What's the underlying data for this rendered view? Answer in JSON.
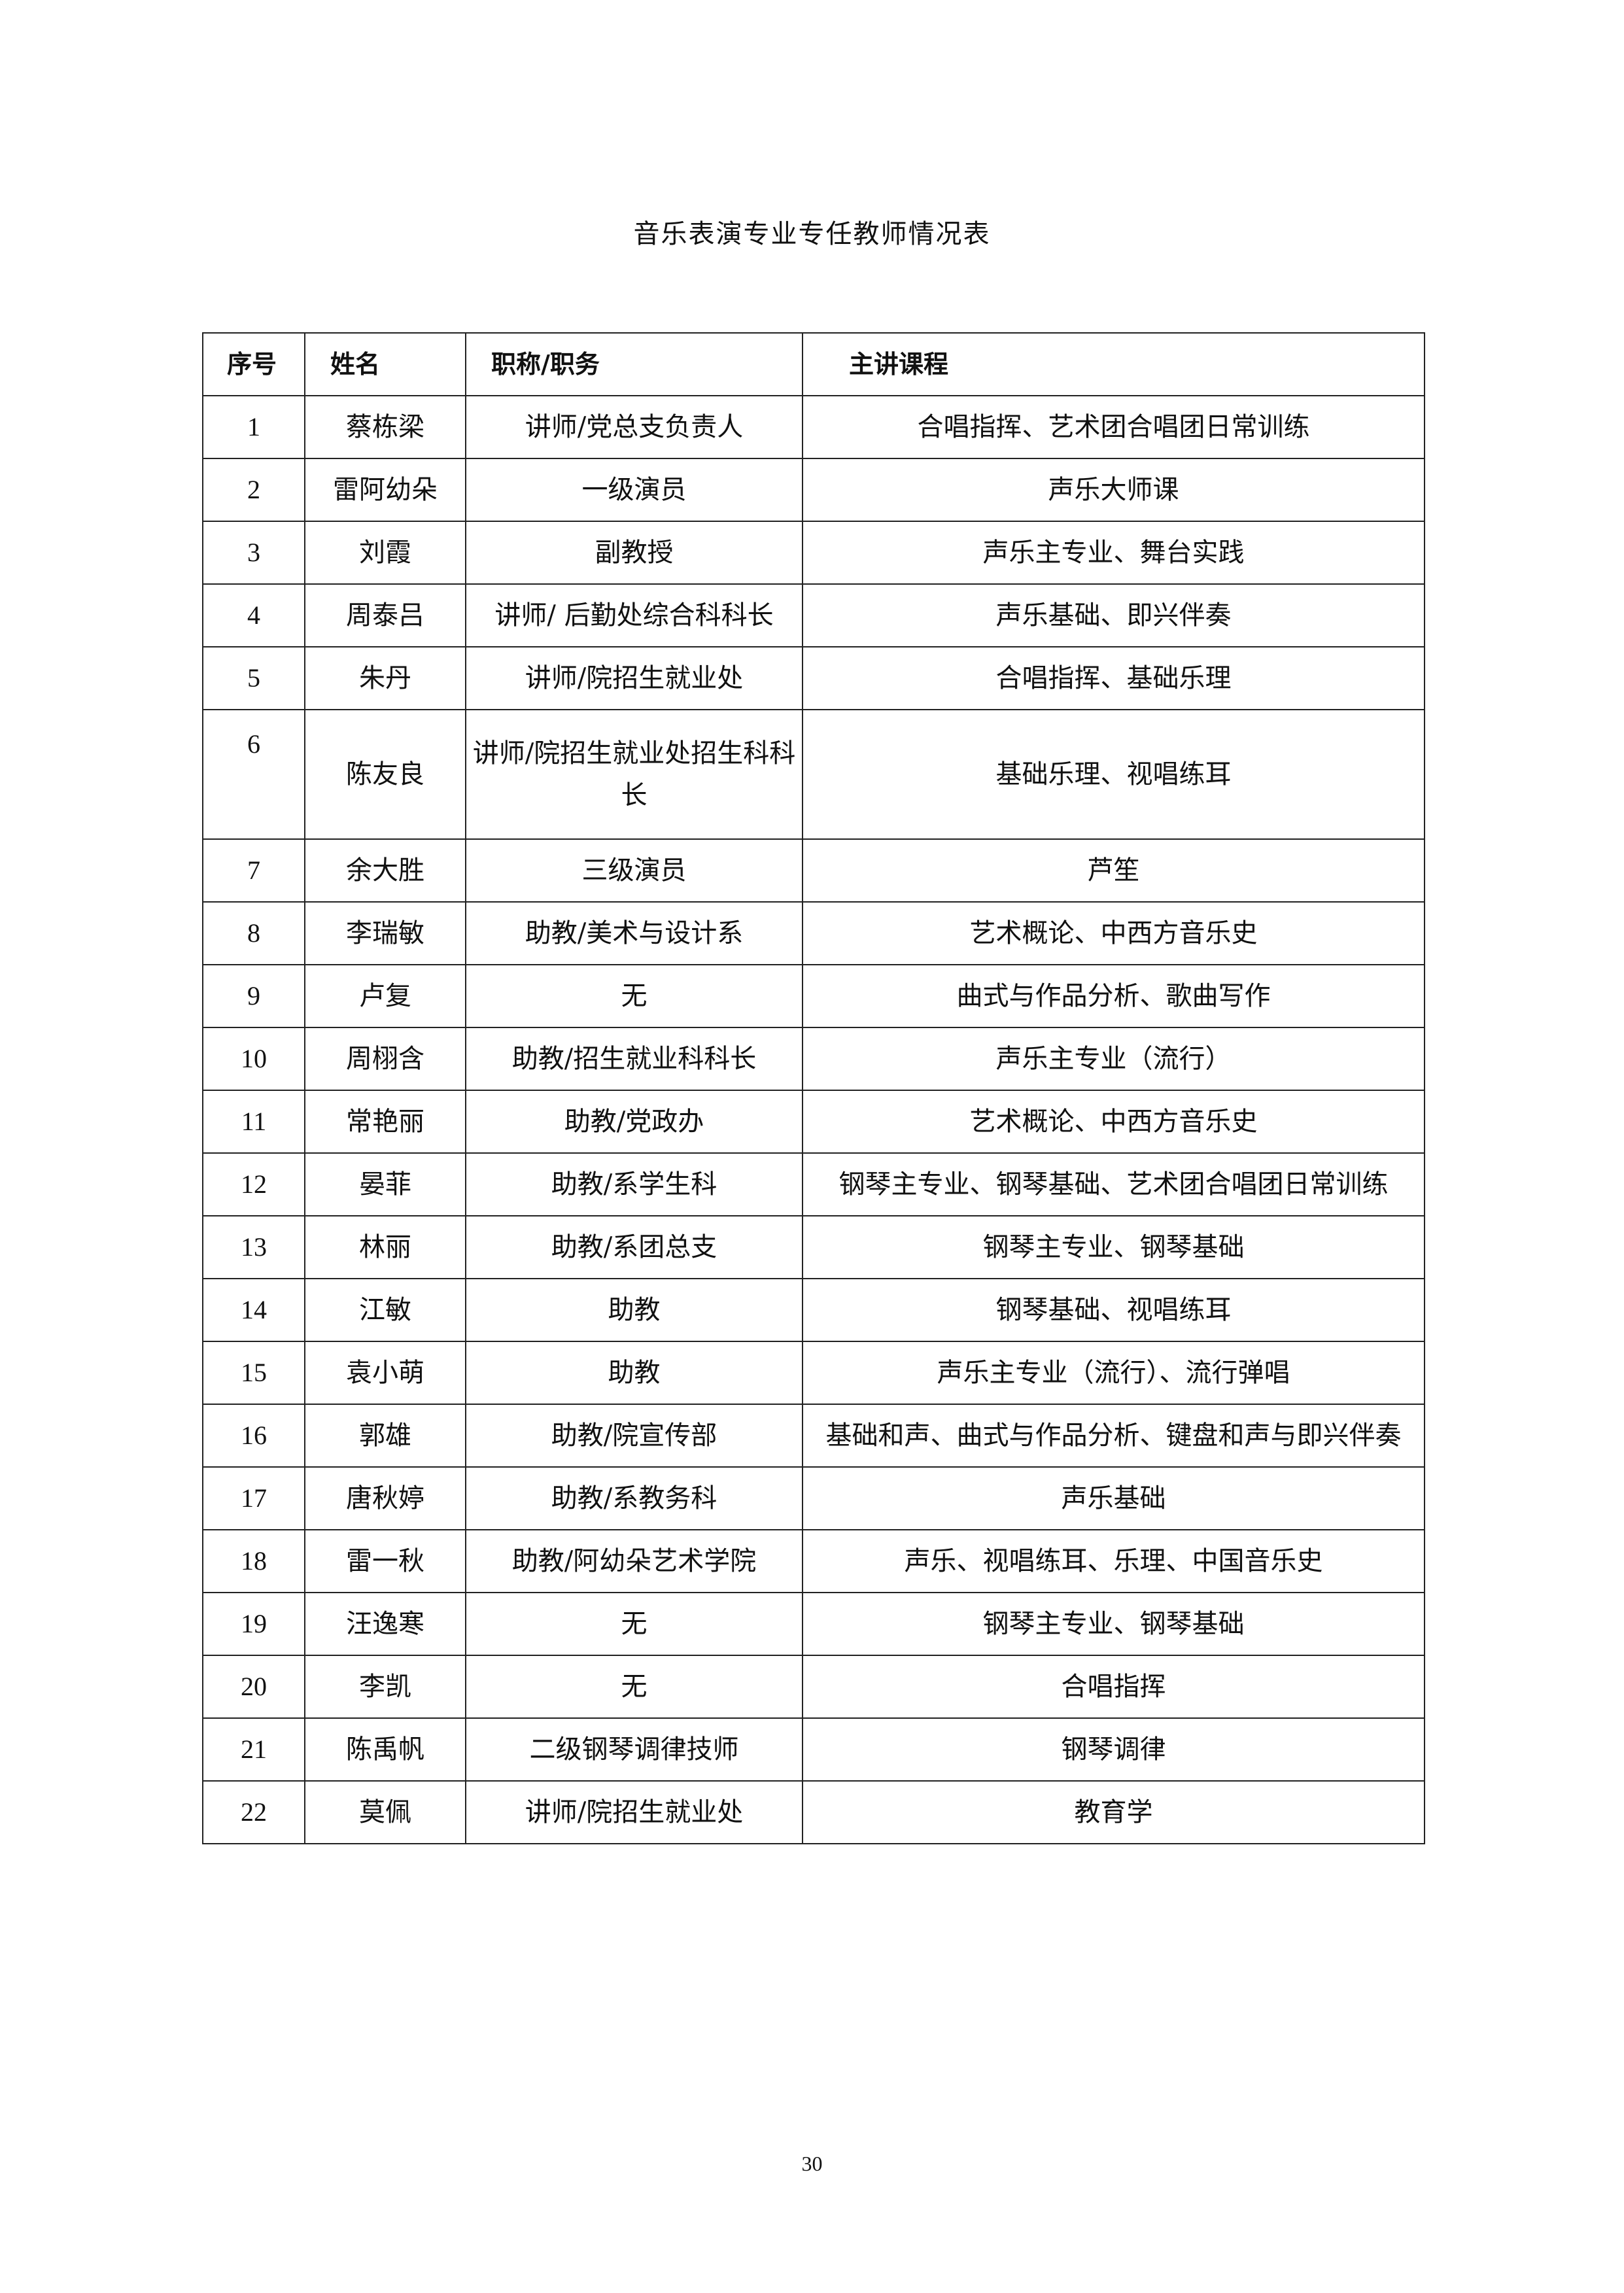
{
  "title": "音乐表演专业专任教师情况表",
  "table": {
    "headers": [
      "序号",
      "姓名",
      "职称/职务",
      "主讲课程"
    ],
    "rows": [
      [
        "1",
        "蔡栋梁",
        "讲师/党总支负责人",
        "合唱指挥、艺术团合唱团日常训练"
      ],
      [
        "2",
        "雷阿幼朵",
        "一级演员",
        "声乐大师课"
      ],
      [
        "3",
        "刘霞",
        "副教授",
        "声乐主专业、舞台实践"
      ],
      [
        "4",
        "周泰吕",
        "讲师/ 后勤处综合科科长",
        "声乐基础、即兴伴奏"
      ],
      [
        "5",
        "朱丹",
        "讲师/院招生就业处",
        "合唱指挥、基础乐理"
      ],
      [
        "6",
        "陈友良",
        "讲师/院招生就业处招生科科长",
        "基础乐理、视唱练耳"
      ],
      [
        "7",
        "余大胜",
        "三级演员",
        "芦笙"
      ],
      [
        "8",
        "李瑞敏",
        "助教/美术与设计系",
        "艺术概论、中西方音乐史"
      ],
      [
        "9",
        "卢复",
        "无",
        "曲式与作品分析、歌曲写作"
      ],
      [
        "10",
        "周栩含",
        "助教/招生就业科科长",
        "声乐主专业（流行）"
      ],
      [
        "11",
        "常艳丽",
        "助教/党政办",
        "艺术概论、中西方音乐史"
      ],
      [
        "12",
        "晏菲",
        "助教/系学生科",
        "钢琴主专业、钢琴基础、艺术团合唱团日常训练"
      ],
      [
        "13",
        "林丽",
        "助教/系团总支",
        "钢琴主专业、钢琴基础"
      ],
      [
        "14",
        "江敏",
        "助教",
        "钢琴基础、视唱练耳"
      ],
      [
        "15",
        "袁小萌",
        "助教",
        "声乐主专业（流行）、流行弹唱"
      ],
      [
        "16",
        "郭雄",
        "助教/院宣传部",
        "基础和声、曲式与作品分析、键盘和声与即兴伴奏"
      ],
      [
        "17",
        "唐秋婷",
        "助教/系教务科",
        "声乐基础"
      ],
      [
        "18",
        "雷一秋",
        "助教/阿幼朵艺术学院",
        "声乐、视唱练耳、乐理、中国音乐史"
      ],
      [
        "19",
        "汪逸寒",
        "无",
        "钢琴主专业、钢琴基础"
      ],
      [
        "20",
        "李凯",
        "无",
        "合唱指挥"
      ],
      [
        "21",
        "陈禹帆",
        "二级钢琴调律技师",
        "钢琴调律"
      ],
      [
        "22",
        "莫佩",
        "讲师/院招生就业处",
        "教育学"
      ]
    ]
  },
  "page_number": "30"
}
